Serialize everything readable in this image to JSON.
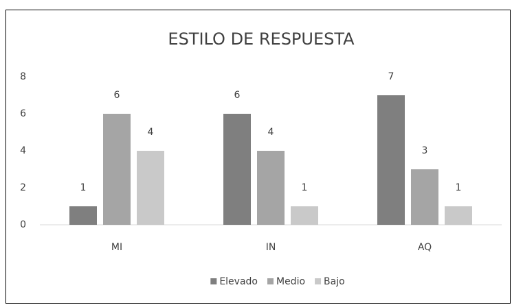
{
  "chart_data": {
    "type": "bar",
    "title": "ESTILO DE RESPUESTA",
    "categories": [
      "MI",
      "IN",
      "AQ"
    ],
    "series": [
      {
        "name": "Elevado",
        "color": "#7f7f7f",
        "values": [
          1,
          6,
          7
        ]
      },
      {
        "name": "Medio",
        "color": "#a5a5a5",
        "values": [
          6,
          4,
          3
        ]
      },
      {
        "name": "Bajo",
        "color": "#c9c9c9",
        "values": [
          4,
          1,
          1
        ]
      }
    ],
    "ylim": [
      0,
      8
    ],
    "yticks": [
      0,
      2,
      4,
      6,
      8
    ],
    "grid": false,
    "legend": "bottom"
  }
}
